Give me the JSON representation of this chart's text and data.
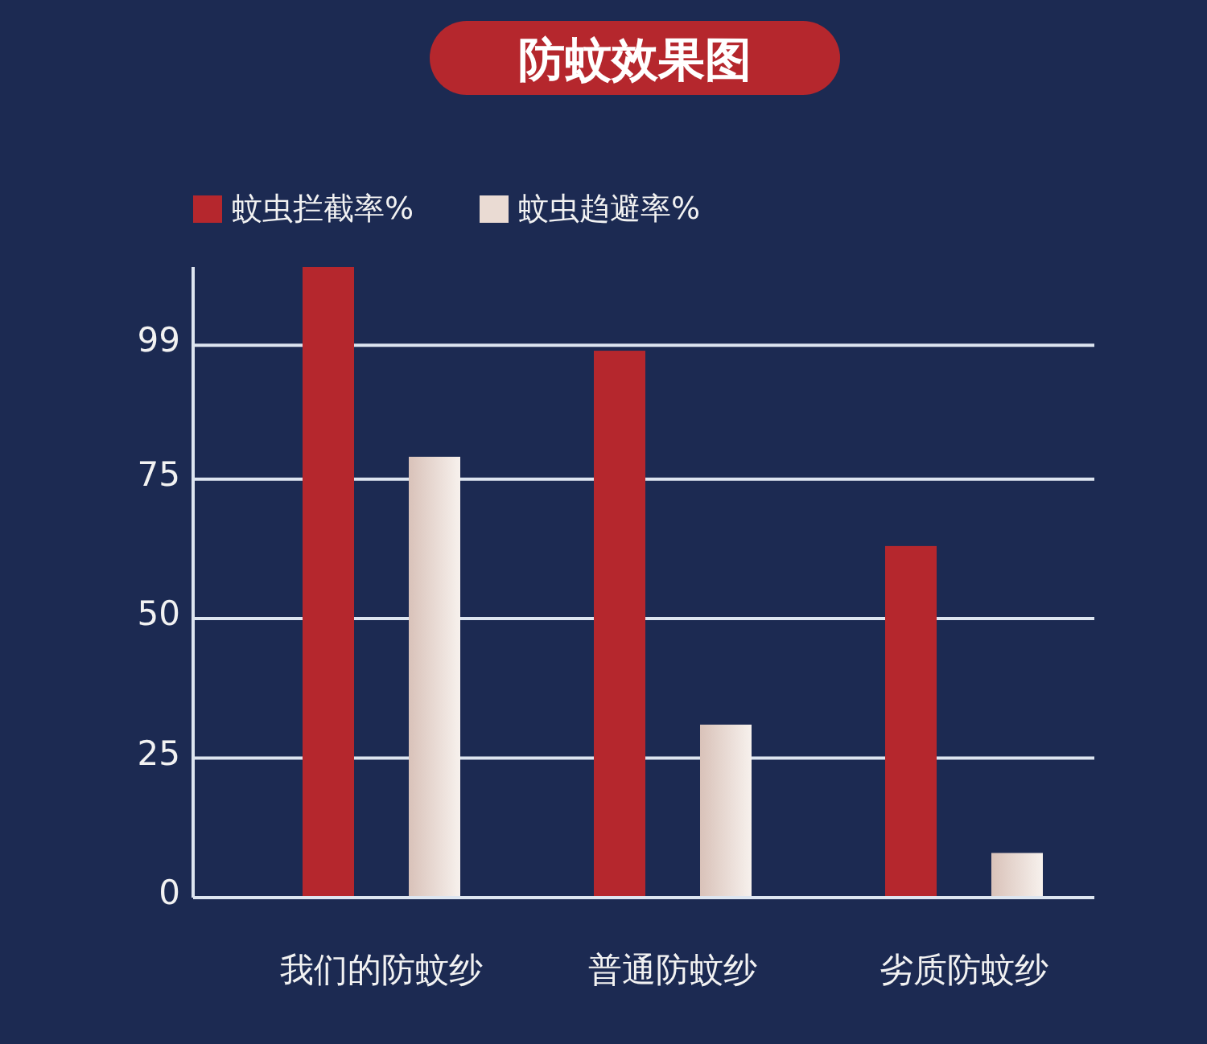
{
  "chart_data": {
    "type": "bar",
    "title": "防蚊效果图",
    "categories": [
      "我们的防蚊纱",
      "普通防蚊纱",
      "劣质防蚊纱"
    ],
    "series": [
      {
        "name": "蚊虫拦截率%",
        "color": "#b5272d",
        "values": [
          113,
          98,
          63
        ]
      },
      {
        "name": "蚊虫趋避率%",
        "color": "#eadbd3",
        "values": [
          79,
          31,
          8
        ]
      }
    ],
    "ylim": [
      0,
      113
    ],
    "yticks": [
      0,
      25,
      50,
      75,
      99
    ],
    "grid": "y",
    "legend": "top left"
  }
}
